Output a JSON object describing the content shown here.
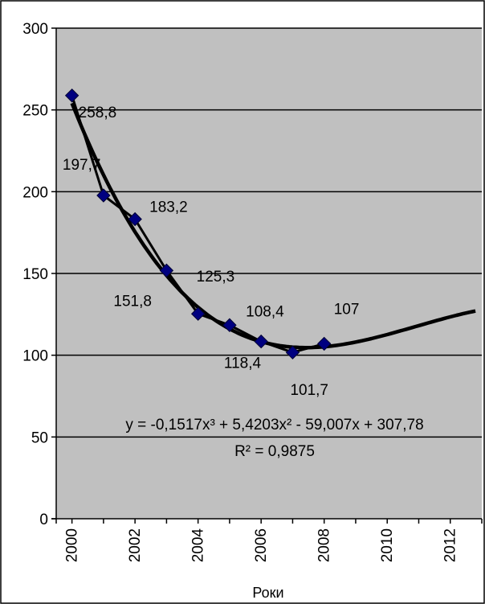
{
  "chart_data": {
    "type": "line",
    "xlabel": "Роки",
    "ylabel": "",
    "ylim": [
      0,
      300
    ],
    "yticks": [
      0,
      50,
      100,
      150,
      200,
      250,
      300
    ],
    "xticks": [
      "2000",
      "2002",
      "2004",
      "2006",
      "2008",
      "2010",
      "2012"
    ],
    "xlim": [
      1999.5,
      2013
    ],
    "grid": "horizontal",
    "plot_background": "#c0c0c0",
    "colors": {
      "marker": "#000080",
      "line": "#000000",
      "trend": "#000000"
    },
    "series": [
      {
        "x": [
          2000,
          2001,
          2002,
          2003,
          2004,
          2005,
          2006,
          2007,
          2008
        ],
        "values": [
          258.8,
          197.7,
          183.2,
          151.8,
          125.3,
          118.4,
          108.4,
          101.7,
          107
        ],
        "labels": [
          "258,8",
          "197,7",
          "183,2",
          "151,8",
          "125,3",
          "118,4",
          "108,4",
          "101,7",
          "107"
        ]
      }
    ],
    "trendline": {
      "kind": "polynomial",
      "degree": 3,
      "coefficients": [
        -0.1517,
        5.4203,
        -59.007,
        307.78
      ],
      "index_start_x": 2000,
      "x_end": 2012.8,
      "equation_text": "y = -0,1517x³ + 5,4203x² - 59,007x + 307,78",
      "r2_text": "R² = 0,9875"
    }
  }
}
